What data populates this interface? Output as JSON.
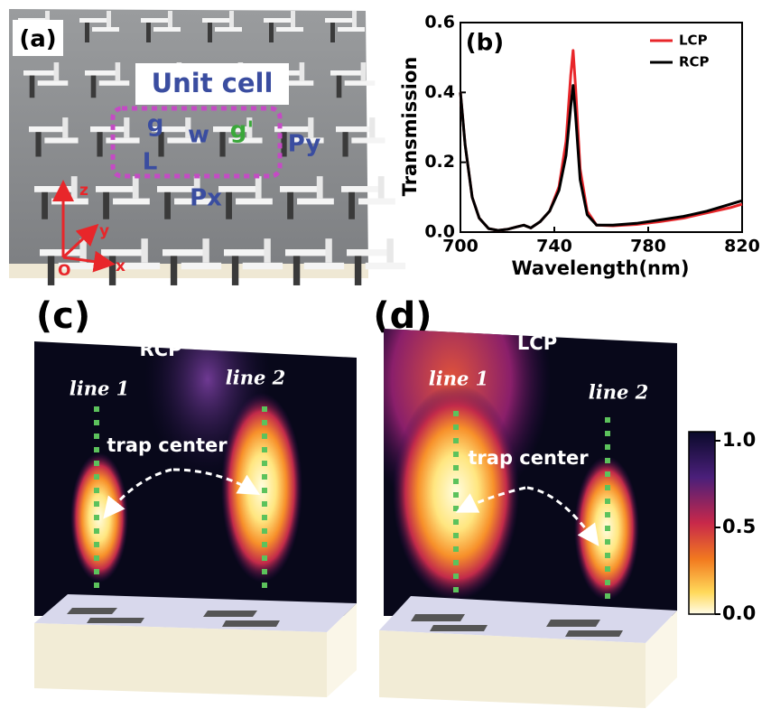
{
  "panel_a": {
    "label": "(a)",
    "unit_cell": "Unit cell",
    "g": "g",
    "w": "w",
    "g_prime": "g'",
    "py": "Py",
    "l": "L",
    "px": "Px",
    "axis_z": "z",
    "axis_y": "y",
    "axis_x": "x",
    "origin": "O"
  },
  "chart_data": {
    "type": "line",
    "title": "(b)",
    "x_label": "Wavelength(nm)",
    "y_label": "Transmission",
    "x": [
      700,
      702,
      705,
      708,
      712,
      716,
      720,
      724,
      727,
      730,
      734,
      738,
      742,
      745,
      747,
      748,
      749,
      751,
      754,
      758,
      765,
      775,
      785,
      795,
      805,
      815,
      820
    ],
    "series": [
      {
        "name": "LCP",
        "color": "#e8262a",
        "values": [
          0.4,
          0.25,
          0.1,
          0.04,
          0.01,
          0.005,
          0.008,
          0.015,
          0.02,
          0.012,
          0.03,
          0.06,
          0.13,
          0.26,
          0.45,
          0.52,
          0.42,
          0.18,
          0.06,
          0.02,
          0.018,
          0.022,
          0.03,
          0.04,
          0.055,
          0.07,
          0.08
        ]
      },
      {
        "name": "RCP",
        "color": "#000000",
        "values": [
          0.4,
          0.25,
          0.1,
          0.04,
          0.01,
          0.005,
          0.008,
          0.015,
          0.02,
          0.012,
          0.03,
          0.06,
          0.12,
          0.22,
          0.36,
          0.42,
          0.34,
          0.15,
          0.05,
          0.02,
          0.02,
          0.025,
          0.035,
          0.045,
          0.06,
          0.08,
          0.09
        ]
      }
    ],
    "xlim": [
      700,
      820
    ],
    "xticks": [
      700,
      740,
      780,
      820
    ],
    "ylim": [
      0,
      0.6
    ],
    "yticks": [
      {
        "value": 0,
        "label": "0.0"
      },
      0.2,
      0.4,
      0.6
    ],
    "legend": "upper right"
  },
  "panel_c": {
    "label": "(c)",
    "polarization": "RCP",
    "line1": "line 1",
    "line2": "line 2",
    "trap": "trap center"
  },
  "panel_d": {
    "label": "(d)",
    "polarization": "LCP",
    "line1": "line 1",
    "line2": "line 2",
    "trap": "trap center"
  },
  "colorbar": {
    "lim": [
      0,
      1
    ],
    "ticks": [
      {
        "value": 1,
        "label": "1.0"
      },
      {
        "value": 0.5,
        "label": "0.5"
      },
      {
        "value": 0,
        "label": "0.0"
      }
    ]
  }
}
